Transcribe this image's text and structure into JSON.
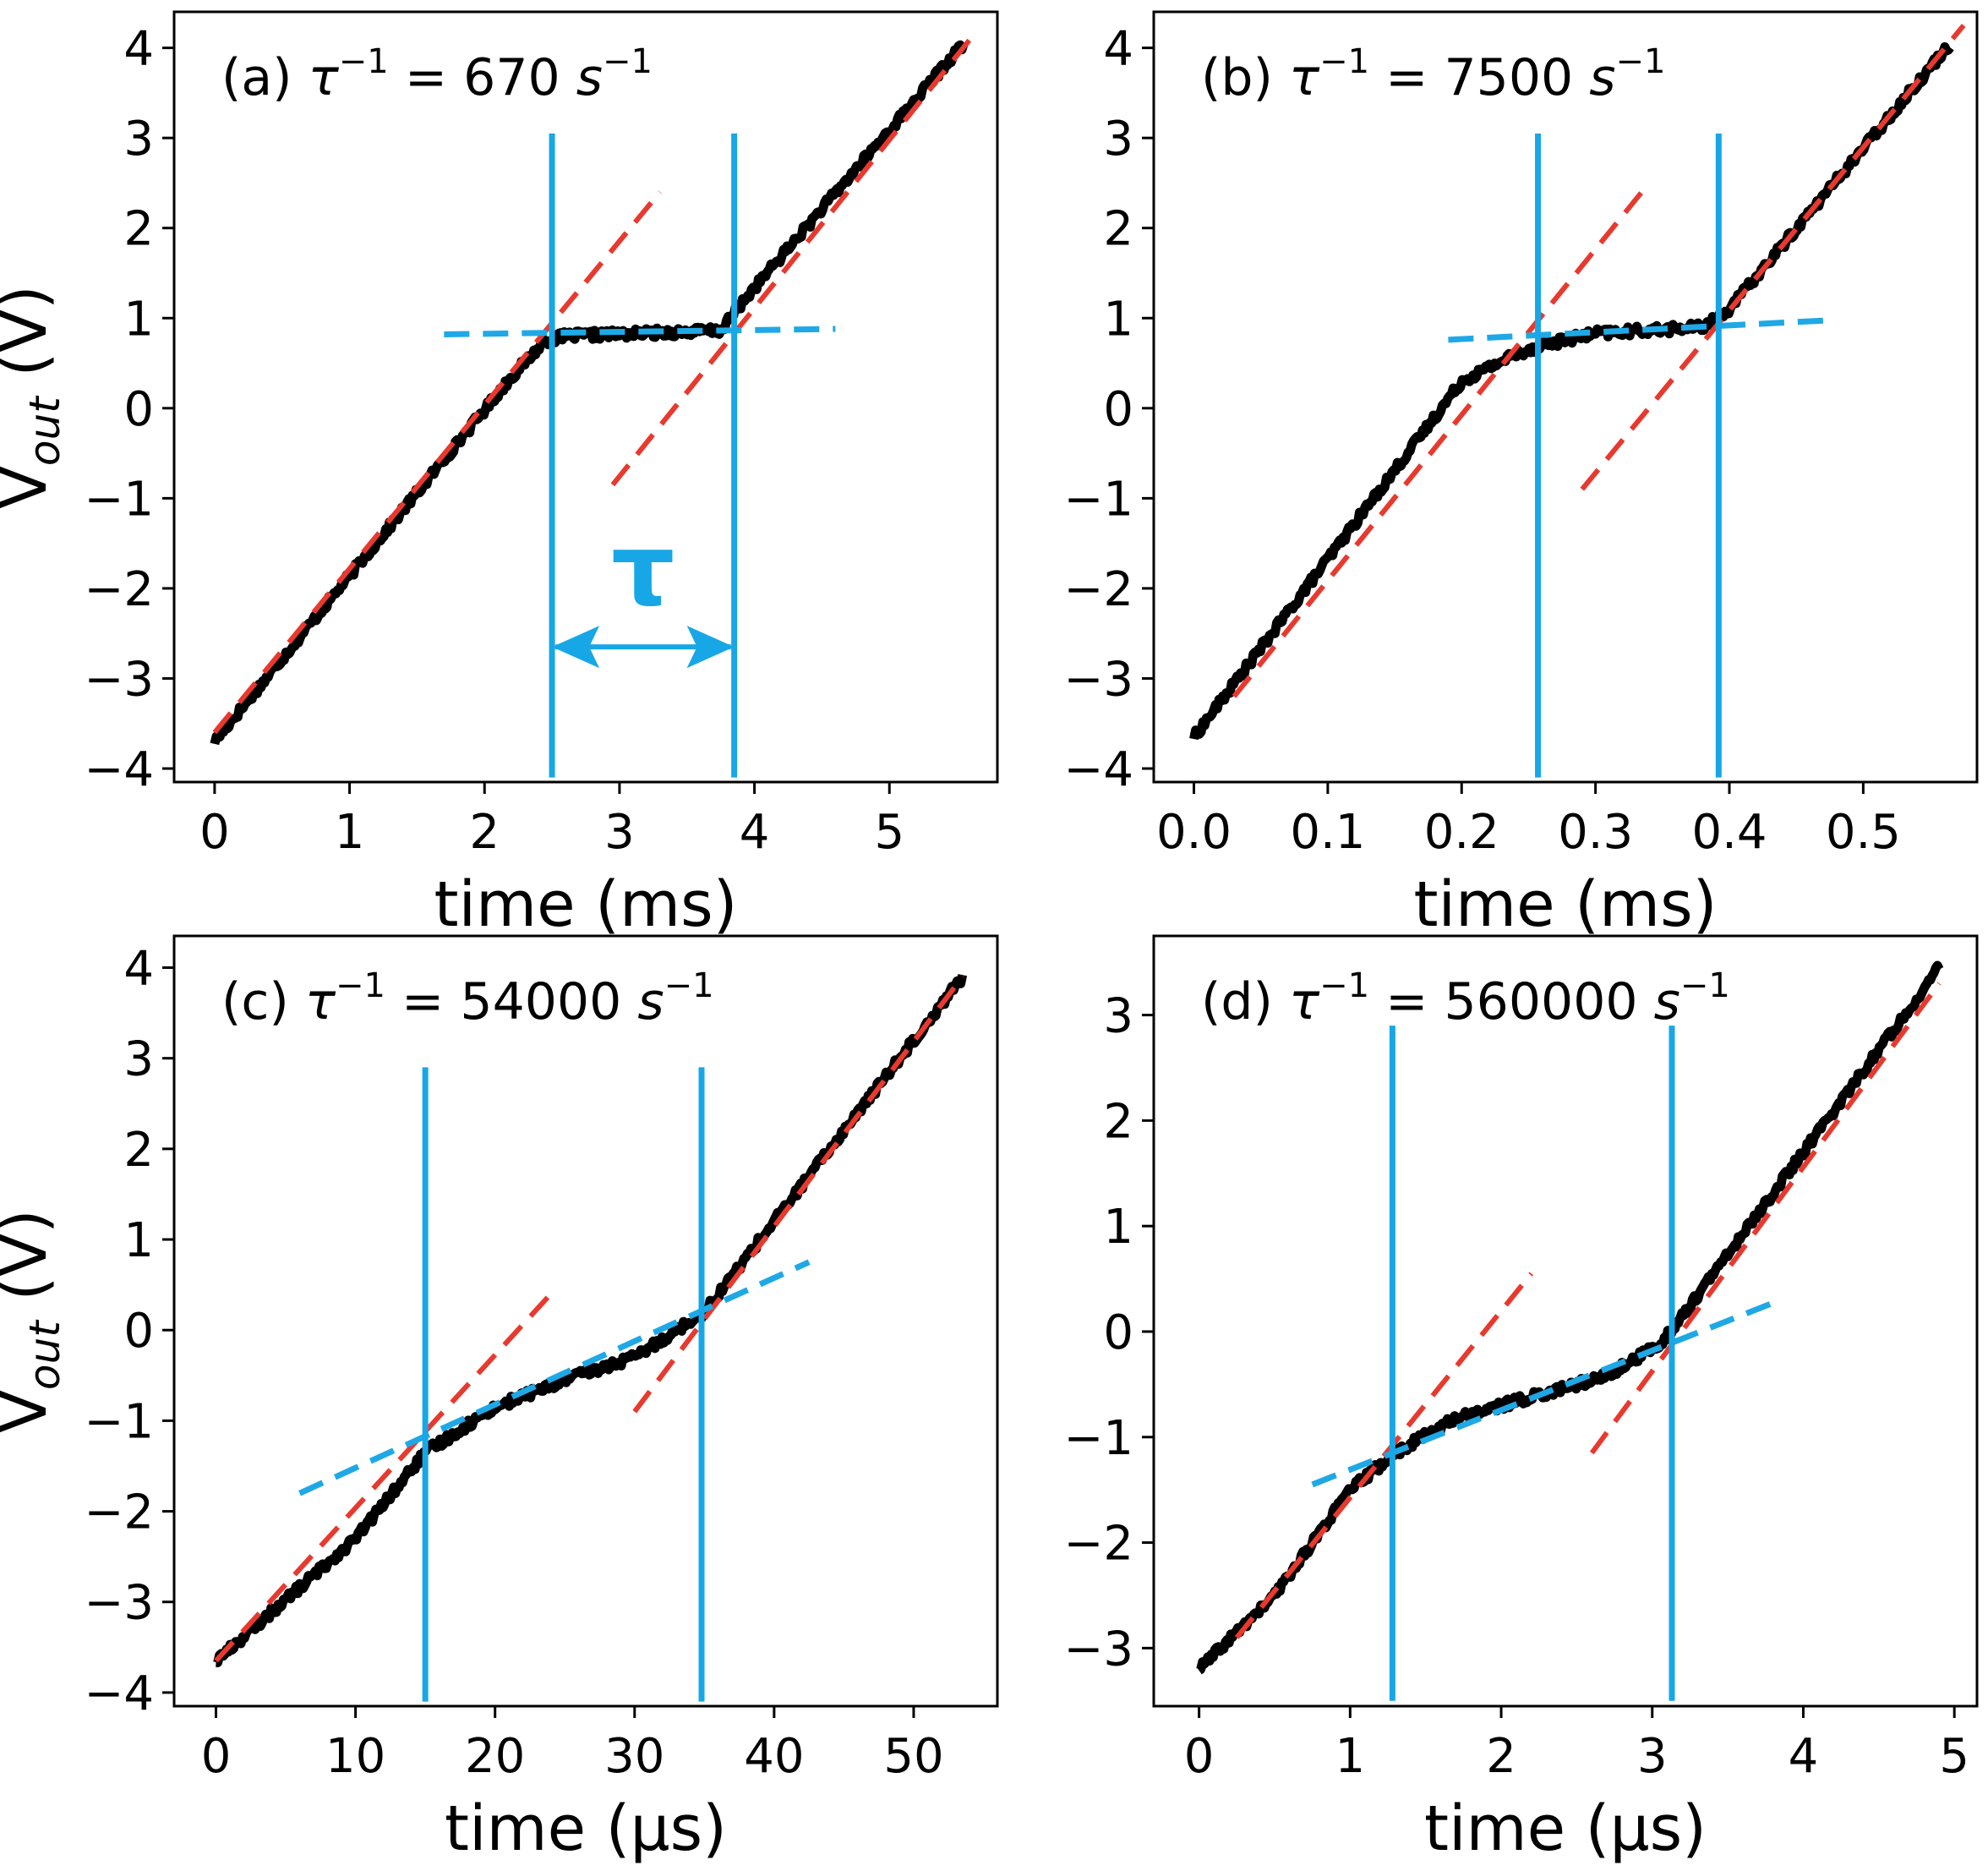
{
  "colors": {
    "data": "#000000",
    "fit_steep": "#e8392e",
    "fit_flat": "#1fa8e6",
    "marker": "#18a7e6"
  },
  "chart_data": [
    {
      "type": "line",
      "panel": "a",
      "annotation": {
        "prefix": "(a)",
        "value": "670",
        "unit": "s"
      },
      "tau_label": "τ",
      "xlabel": "time (ms)",
      "ylabel": {
        "main": "V",
        "sub": "out",
        "unit": "(V)"
      },
      "xlim": [
        -0.3,
        5.8
      ],
      "ylim": [
        -4.15,
        4.4
      ],
      "xticks": [
        0,
        1,
        2,
        3,
        4,
        5
      ],
      "xtick_labels": [
        "0",
        "1",
        "2",
        "3",
        "4",
        "5"
      ],
      "yticks": [
        -4,
        -3,
        -2,
        -1,
        0,
        1,
        2,
        3,
        4
      ],
      "ytick_labels": [
        "−4",
        "−3",
        "−2",
        "−1",
        "0",
        "1",
        "2",
        "3",
        "4"
      ],
      "data_points": [
        [
          0,
          -3.7
        ],
        [
          2.2,
          0.35
        ],
        [
          2.45,
          0.75
        ],
        [
          2.6,
          0.8
        ],
        [
          3.3,
          0.84
        ],
        [
          3.75,
          0.86
        ],
        [
          3.95,
          1.25
        ],
        [
          5.55,
          4.05
        ]
      ],
      "fit_before": [
        [
          0,
          -3.6
        ],
        [
          3.3,
          2.4
        ]
      ],
      "fit_after": [
        [
          2.95,
          -0.85
        ],
        [
          5.6,
          4.1
        ]
      ],
      "fit_plateau": [
        [
          1.7,
          0.82
        ],
        [
          4.6,
          0.88
        ]
      ],
      "tau_start": 2.5,
      "tau_end": 3.85,
      "marker_range": [
        -4.1,
        3.05
      ],
      "tau_arrow_y": -2.65
    },
    {
      "type": "line",
      "panel": "b",
      "annotation": {
        "prefix": "(b)",
        "value": "7500",
        "unit": "s"
      },
      "xlabel": "time (ms)",
      "ylabel": null,
      "xlim": [
        -0.03,
        0.585
      ],
      "ylim": [
        -4.15,
        4.4
      ],
      "xticks": [
        0.0,
        0.1,
        0.2,
        0.3,
        0.4,
        0.5
      ],
      "xtick_labels": [
        "0.0",
        "0.1",
        "0.2",
        "0.3",
        "0.4",
        "0.5"
      ],
      "yticks": [
        -4,
        -3,
        -2,
        -1,
        0,
        1,
        2,
        3,
        4
      ],
      "ytick_labels": [
        "−4",
        "−3",
        "−2",
        "−1",
        "0",
        "1",
        "2",
        "3",
        "4"
      ],
      "data_points": [
        [
          0,
          -3.65
        ],
        [
          0.2,
          0.3
        ],
        [
          0.24,
          0.6
        ],
        [
          0.26,
          0.7
        ],
        [
          0.3,
          0.83
        ],
        [
          0.38,
          0.9
        ],
        [
          0.4,
          1.1
        ],
        [
          0.565,
          4.05
        ]
      ],
      "fit_before": [
        [
          0.03,
          -3.2
        ],
        [
          0.34,
          2.5
        ]
      ],
      "fit_after": [
        [
          0.29,
          -0.9
        ],
        [
          0.575,
          4.25
        ]
      ],
      "fit_plateau": [
        [
          0.19,
          0.76
        ],
        [
          0.48,
          0.98
        ]
      ],
      "tau_start": 0.257,
      "tau_end": 0.392,
      "marker_range": [
        -4.1,
        3.05
      ]
    },
    {
      "type": "line",
      "panel": "c",
      "annotation": {
        "prefix": "(c)",
        "value": "54000",
        "unit": "s"
      },
      "xlabel": "time (μs)",
      "ylabel": {
        "main": "V",
        "sub": "out",
        "unit": "(V)"
      },
      "xlim": [
        -3,
        56
      ],
      "ylim": [
        -4.15,
        4.35
      ],
      "xticks": [
        0,
        10,
        20,
        30,
        40,
        50
      ],
      "xtick_labels": [
        "0",
        "10",
        "20",
        "30",
        "40",
        "50"
      ],
      "yticks": [
        -4,
        -3,
        -2,
        -1,
        0,
        1,
        2,
        3,
        4
      ],
      "ytick_labels": [
        "−4",
        "−3",
        "−2",
        "−1",
        "0",
        "1",
        "2",
        "3",
        "4"
      ],
      "data_points": [
        [
          0,
          -3.65
        ],
        [
          10,
          -2.3
        ],
        [
          15,
          -1.35
        ],
        [
          20,
          -0.85
        ],
        [
          25,
          -0.55
        ],
        [
          30,
          -0.3
        ],
        [
          35,
          0.2
        ],
        [
          40,
          1.2
        ],
        [
          45,
          2.2
        ],
        [
          53.5,
          3.9
        ]
      ],
      "fit_before": [
        [
          0,
          -3.65
        ],
        [
          24,
          0.4
        ]
      ],
      "fit_after": [
        [
          30,
          -0.9
        ],
        [
          53.5,
          3.9
        ]
      ],
      "fit_plateau": [
        [
          6,
          -1.8
        ],
        [
          42.5,
          0.75
        ]
      ],
      "tau_start": 15,
      "tau_end": 34.8,
      "marker_range": [
        -4.1,
        2.9
      ]
    },
    {
      "type": "line",
      "panel": "d",
      "annotation": {
        "prefix": "(d)",
        "value": "560000",
        "unit": "s"
      },
      "xlabel": "time (μs)",
      "ylabel": null,
      "xlim": [
        -0.3,
        5.15
      ],
      "ylim": [
        -3.55,
        3.75
      ],
      "xticks": [
        0,
        1,
        2,
        3,
        4,
        5
      ],
      "xtick_labels": [
        "0",
        "1",
        "2",
        "3",
        "4",
        "5"
      ],
      "yticks": [
        -3,
        -2,
        -1,
        0,
        1,
        2,
        3
      ],
      "ytick_labels": [
        "−3",
        "−2",
        "−1",
        "0",
        "1",
        "2",
        "3"
      ],
      "data_points": [
        [
          0,
          -3.2
        ],
        [
          0.5,
          -2.5
        ],
        [
          1,
          -1.5
        ],
        [
          1.3,
          -1.15
        ],
        [
          1.7,
          -0.82
        ],
        [
          2.2,
          -0.62
        ],
        [
          2.7,
          -0.42
        ],
        [
          3.05,
          -0.12
        ],
        [
          3.2,
          0.15
        ],
        [
          4,
          1.7
        ],
        [
          4.9,
          3.45
        ]
      ],
      "fit_before": [
        [
          0.25,
          -2.9
        ],
        [
          2.2,
          0.55
        ]
      ],
      "fit_after": [
        [
          2.6,
          -1.15
        ],
        [
          4.9,
          3.3
        ]
      ],
      "fit_plateau": [
        [
          0.75,
          -1.45
        ],
        [
          3.85,
          0.3
        ]
      ],
      "tau_start": 1.28,
      "tau_end": 3.13,
      "marker_range": [
        -3.5,
        2.9
      ]
    }
  ]
}
